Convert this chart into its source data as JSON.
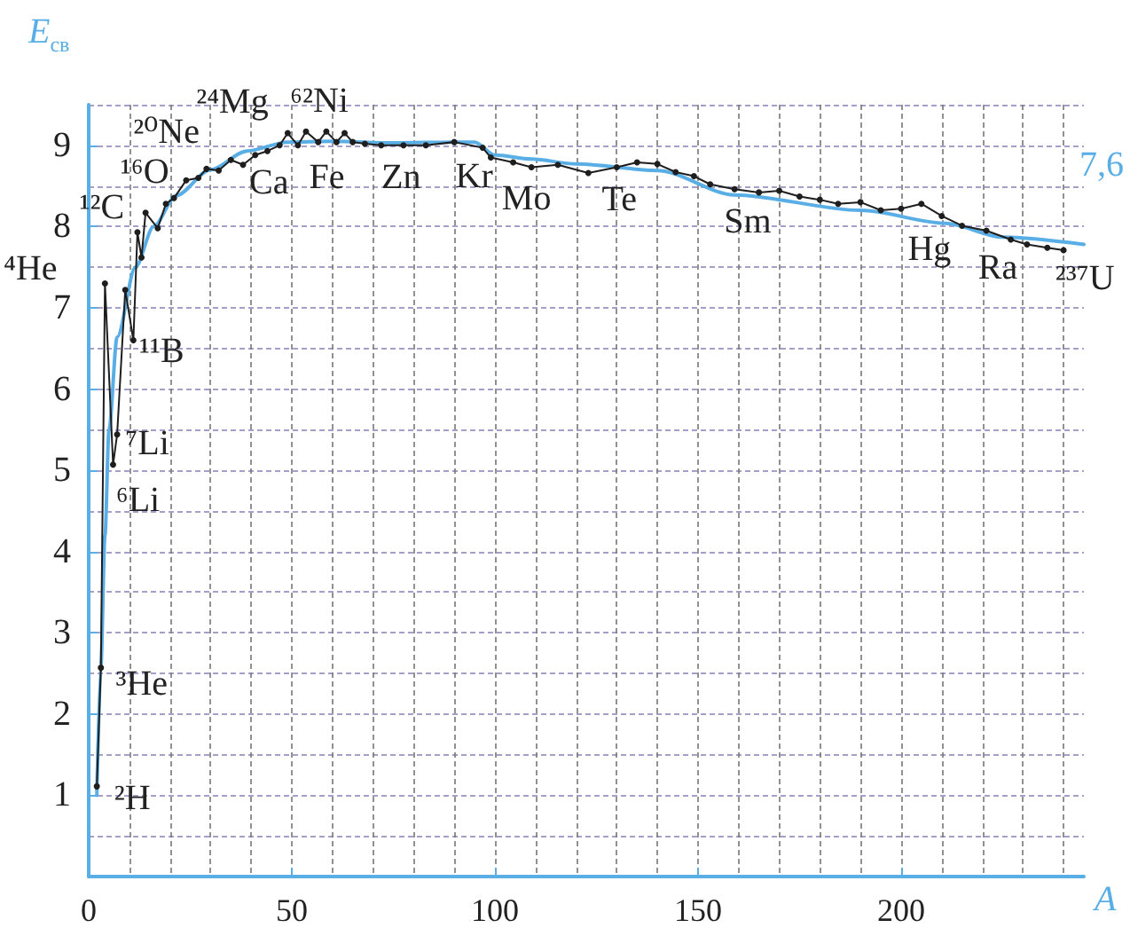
{
  "chart_data": {
    "type": "line",
    "xlabel": "A",
    "ylabel": "E$_{св}$",
    "xlim": [
      0,
      245
    ],
    "ylim": [
      0,
      9.5
    ],
    "xticks": [
      0,
      {
        "value": 10,
        "label": null
      },
      {
        "value": 20,
        "label": null
      },
      {
        "value": 30,
        "label": null
      },
      {
        "value": 40,
        "label": null
      },
      50,
      {
        "value": 60,
        "label": null
      },
      {
        "value": 70,
        "label": null
      },
      {
        "value": 80,
        "label": null
      },
      {
        "value": 90,
        "label": null
      },
      100,
      {
        "value": 110,
        "label": null
      },
      {
        "value": 120,
        "label": null
      },
      {
        "value": 130,
        "label": null
      },
      {
        "value": 140,
        "label": null
      },
      150,
      {
        "value": 160,
        "label": null
      },
      {
        "value": 170,
        "label": null
      },
      {
        "value": 180,
        "label": null
      },
      {
        "value": 190,
        "label": null
      },
      200,
      {
        "value": 210,
        "label": null
      },
      {
        "value": 220,
        "label": null
      },
      {
        "value": 230,
        "label": null
      },
      {
        "value": 240,
        "label": null
      }
    ],
    "yticks": [
      {
        "value": 0.5,
        "label": null
      },
      1,
      {
        "value": 1.5,
        "label": null
      },
      2,
      {
        "value": 2.5,
        "label": null
      },
      3,
      {
        "value": 3.5,
        "label": null
      },
      4,
      {
        "value": 4.5,
        "label": null
      },
      5,
      {
        "value": 5.5,
        "label": null
      },
      6,
      {
        "value": 6.5,
        "label": null
      },
      7,
      {
        "value": 7.5,
        "label": null
      },
      8,
      {
        "value": 8.5,
        "label": null
      },
      9,
      {
        "value": 9.5,
        "label": null
      }
    ],
    "grid": true,
    "series": [
      {
        "color": "#1e1e1e",
        "marker": "circle",
        "x": [
          2,
          3,
          4,
          6,
          7,
          9,
          11,
          12,
          13,
          14,
          17,
          19,
          21,
          24,
          27,
          29,
          32,
          35,
          38,
          41,
          44,
          47,
          49,
          51.5,
          53.5,
          56.5,
          58.5,
          61,
          63,
          65,
          68,
          72,
          77.5,
          83,
          90,
          97,
          99,
          104.5,
          109,
          115.5,
          123,
          130,
          135,
          140,
          144.5,
          149,
          153,
          159,
          165,
          170,
          175,
          180,
          184.5,
          190,
          195,
          200,
          205,
          210,
          215,
          221,
          227,
          231,
          236,
          240
        ],
        "values": [
          1.11,
          2.57,
          7.3,
          5.07,
          5.44,
          7.22,
          6.6,
          7.93,
          7.62,
          8.17,
          7.98,
          8.28,
          8.35,
          8.57,
          8.6,
          8.71,
          8.69,
          8.82,
          8.76,
          8.88,
          8.93,
          9.0,
          9.15,
          9.0,
          9.17,
          9.04,
          9.17,
          9.04,
          9.15,
          9.04,
          9.02,
          9.0,
          9.0,
          9.0,
          9.04,
          8.97,
          8.85,
          8.79,
          8.73,
          8.76,
          8.66,
          8.73,
          8.79,
          8.77,
          8.67,
          8.62,
          8.52,
          8.46,
          8.42,
          8.44,
          8.37,
          8.33,
          8.28,
          8.3,
          8.2,
          8.22,
          8.28,
          8.13,
          8.01,
          7.95,
          7.84,
          7.78,
          7.74,
          7.71
        ]
      },
      {
        "color": "#5aaee6",
        "marker": "none",
        "x": [
          2,
          3,
          4,
          5,
          7,
          11.5,
          16,
          21.5,
          30,
          39,
          49,
          60,
          75,
          90,
          95,
          100,
          109,
          120,
          140,
          159,
          190,
          211,
          225,
          245
        ],
        "values": [
          1.0,
          2.6,
          4.2,
          5.5,
          6.64,
          7.5,
          8.0,
          8.38,
          8.7,
          8.93,
          9.04,
          9.05,
          9.03,
          9.04,
          9.04,
          8.88,
          8.83,
          8.77,
          8.69,
          8.39,
          8.2,
          8.04,
          7.87,
          7.78
        ]
      }
    ],
    "annotations": [
      {
        "text": "²H",
        "x": 2,
        "y": 1.11
      },
      {
        "text": "³He",
        "x": 3,
        "y": 2.57
      },
      {
        "text": "⁶Li",
        "x": 6,
        "y": 5.07
      },
      {
        "text": "⁷Li",
        "x": 7,
        "y": 5.44
      },
      {
        "text": "⁴He",
        "x": 4,
        "y": 7.3
      },
      {
        "text": "¹¹B",
        "x": 11,
        "y": 6.6
      },
      {
        "text": "¹²C",
        "x": 12,
        "y": 7.93
      },
      {
        "text": "¹⁶O",
        "x": 16,
        "y": 8.17
      },
      {
        "text": "²⁰Ne",
        "x": 20,
        "y": 8.35
      },
      {
        "text": "²⁴Mg",
        "x": 24,
        "y": 8.57
      },
      {
        "text": "Ca",
        "x": 40,
        "y": 8.76
      },
      {
        "text": "⁶²Ni",
        "x": 62,
        "y": 9.15
      },
      {
        "text": "Fe",
        "x": 56,
        "y": 9.0
      },
      {
        "text": "Zn",
        "x": 66,
        "y": 9.0
      },
      {
        "text": "Kr",
        "x": 84,
        "y": 9.05
      },
      {
        "text": "Mo",
        "x": 96,
        "y": 8.85
      },
      {
        "text": "Te",
        "x": 128,
        "y": 8.73
      },
      {
        "text": "Sm",
        "x": 150,
        "y": 8.6
      },
      {
        "text": "Hg",
        "x": 200,
        "y": 8.22
      },
      {
        "text": "Ra",
        "x": 226,
        "y": 7.84
      },
      {
        "text": "²³⁷U",
        "x": 240,
        "y": 7.71
      },
      {
        "text": "7,6",
        "x": 245,
        "y": 7.78
      }
    ]
  }
}
